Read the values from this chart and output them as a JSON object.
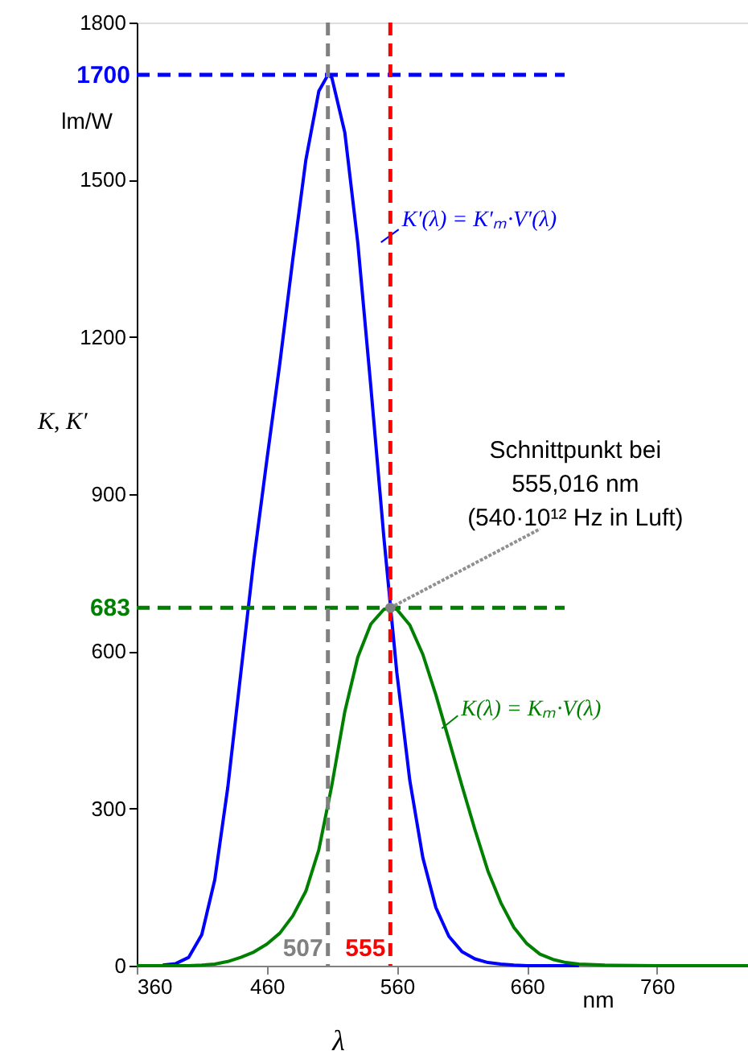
{
  "chart_data": {
    "type": "line",
    "xlabel": "λ",
    "ylabel": "K, K′",
    "xlim": [
      360,
      830
    ],
    "xticks": [
      360,
      460,
      560,
      660,
      760
    ],
    "ylim": [
      0,
      1800
    ],
    "yticks": [
      0,
      300,
      600,
      900,
      1200,
      1500,
      1800
    ],
    "grid": false,
    "legend": "right",
    "marker": "none",
    "line_style": "solid",
    "series": [
      {
        "name": "K′(λ) = K′ₘ·V′(λ)",
        "color": "#0000ff",
        "x": [
          380,
          390,
          400,
          410,
          420,
          430,
          440,
          450,
          460,
          470,
          480,
          490,
          500,
          507,
          510,
          520,
          530,
          540,
          550,
          560,
          570,
          580,
          590,
          600,
          610,
          620,
          630,
          640,
          650,
          660,
          680,
          700
        ],
        "values": [
          1,
          4,
          16,
          59,
          164,
          340,
          558,
          774,
          964,
          1149,
          1348,
          1537,
          1669,
          1700,
          1695,
          1590,
          1379,
          1105,
          818,
          559,
          353,
          206,
          111,
          56,
          27,
          13,
          6,
          3,
          1,
          0,
          0,
          0
        ]
      },
      {
        "name": "K(λ) = Kₘ·V(λ)",
        "color": "#008000",
        "x": [
          360,
          380,
          400,
          410,
          420,
          430,
          440,
          450,
          460,
          470,
          480,
          490,
          500,
          510,
          520,
          530,
          540,
          550,
          555,
          560,
          570,
          580,
          590,
          600,
          610,
          620,
          630,
          640,
          650,
          660,
          670,
          680,
          690,
          700,
          720,
          760,
          830
        ],
        "values": [
          0,
          0,
          0,
          1,
          3,
          8,
          16,
          26,
          41,
          62,
          95,
          142,
          221,
          344,
          485,
          589,
          652,
          680,
          683,
          680,
          650,
          594,
          517,
          431,
          344,
          260,
          181,
          120,
          73,
          42,
          22,
          12,
          6,
          3,
          1,
          0,
          0
        ]
      }
    ],
    "ref_lines": [
      {
        "axis": "y",
        "value": 1700,
        "label": "1700",
        "color": "#0000ff",
        "line_style": "dashed"
      },
      {
        "axis": "y",
        "value": 683,
        "label": "683",
        "color": "#008000",
        "line_style": "dashed"
      },
      {
        "axis": "x",
        "value": 507,
        "label": "507",
        "color": "#808080",
        "line_style": "dashed"
      },
      {
        "axis": "x",
        "value": 555,
        "label": "555",
        "color": "#ff0000",
        "line_style": "dashed"
      }
    ],
    "annotations": [
      {
        "text": "Schnittpunkt bei\n555,016 nm\n(540·10¹² Hz in Luft)",
        "x": 555.016,
        "y": 683
      },
      "lm/W",
      "nm"
    ]
  }
}
